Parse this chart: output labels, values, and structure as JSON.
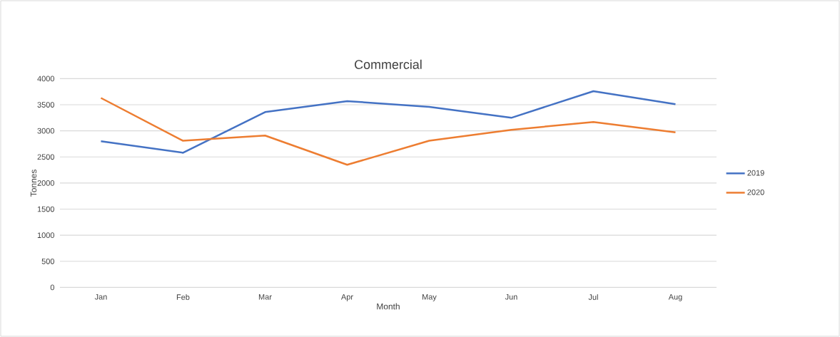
{
  "chart_data": {
    "type": "line",
    "title": "Commercial",
    "xlabel": "Month",
    "ylabel": "Tonnes",
    "categories": [
      "Jan",
      "Feb",
      "Mar",
      "Apr",
      "May",
      "Jun",
      "Jul",
      "Aug"
    ],
    "series": [
      {
        "name": "2019",
        "color": "#4472c4",
        "values": [
          2800,
          2580,
          3360,
          3570,
          3460,
          3250,
          3760,
          3510
        ]
      },
      {
        "name": "2020",
        "color": "#ed7d31",
        "values": [
          3630,
          2810,
          2910,
          2350,
          2810,
          3020,
          3170,
          2970
        ]
      }
    ],
    "ylim": [
      0,
      4000
    ],
    "yticks": [
      0,
      500,
      1000,
      1500,
      2000,
      2500,
      3000,
      3500,
      4000
    ],
    "grid": "y",
    "legend": "right",
    "line_style": "solid"
  }
}
